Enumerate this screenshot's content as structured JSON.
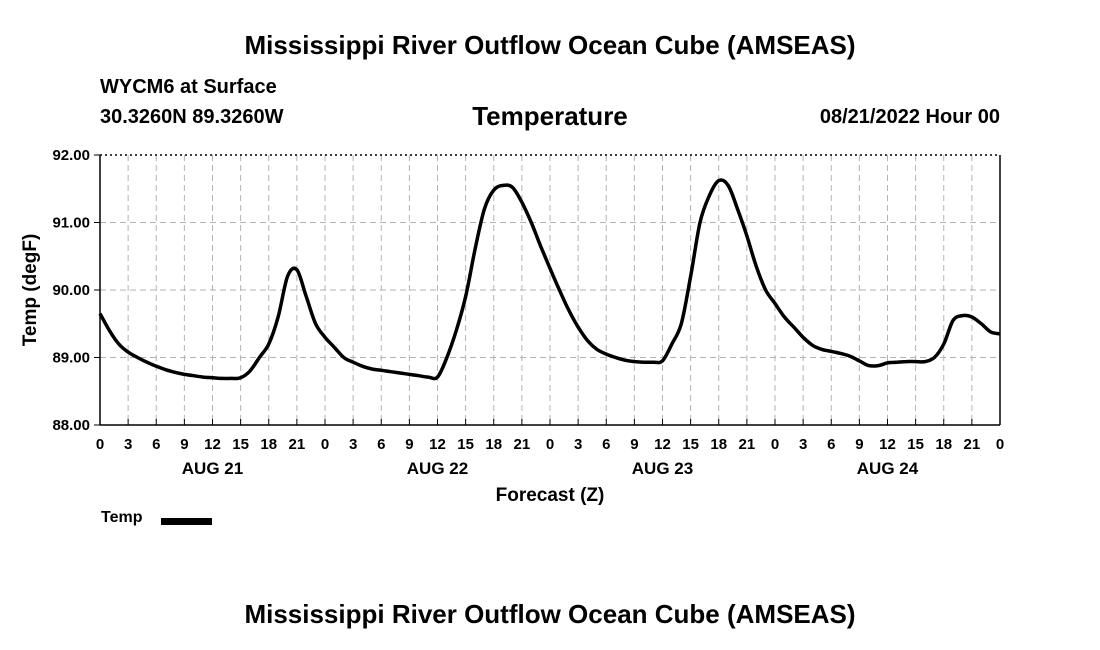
{
  "header": {
    "main_title": "Mississippi River Outflow Ocean Cube (AMSEAS)",
    "footer_title": "Mississippi River Outflow Ocean Cube (AMSEAS)",
    "station": "WYCM6 at Surface",
    "location": "30.3260N  89.3260W",
    "variable": "Temperature",
    "datetime": "08/21/2022 Hour 00"
  },
  "legend": {
    "label": "Temp"
  },
  "chart_data": {
    "type": "line",
    "title": "Temperature",
    "xlabel": "Forecast (Z)",
    "ylabel": "Temp (degF)",
    "ylim": [
      88.0,
      92.0
    ],
    "xlim": [
      0,
      96
    ],
    "y_ticks": [
      "88.00",
      "89.00",
      "90.00",
      "91.00",
      "92.00"
    ],
    "y_tick_values": [
      88.0,
      89.0,
      90.0,
      91.0,
      92.0
    ],
    "x_tick_labels": [
      "0",
      "3",
      "6",
      "9",
      "12",
      "15",
      "18",
      "21",
      "0",
      "3",
      "6",
      "9",
      "12",
      "15",
      "18",
      "21",
      "0",
      "3",
      "6",
      "9",
      "12",
      "15",
      "18",
      "21",
      "0",
      "3",
      "6",
      "9",
      "12",
      "15",
      "18",
      "21",
      "0"
    ],
    "day_labels": [
      {
        "label": "AUG 21",
        "hour": 12
      },
      {
        "label": "AUG 22",
        "hour": 36
      },
      {
        "label": "AUG 23",
        "hour": 60
      },
      {
        "label": "AUG 24",
        "hour": 84
      }
    ],
    "grid": true,
    "legend_position": "bottom-left",
    "series": [
      {
        "name": "Temp",
        "color": "#000000",
        "x": [
          0,
          1,
          2,
          3,
          4,
          5,
          6,
          7,
          8,
          9,
          10,
          11,
          12,
          13,
          14,
          15,
          16,
          17,
          18,
          19,
          20,
          21,
          22,
          23,
          24,
          25,
          26,
          27,
          28,
          29,
          30,
          31,
          32,
          33,
          34,
          35,
          36,
          37,
          38,
          39,
          40,
          41,
          42,
          43,
          44,
          45,
          46,
          47,
          48,
          49,
          50,
          51,
          52,
          53,
          54,
          55,
          56,
          57,
          58,
          59,
          60,
          61,
          62,
          63,
          64,
          65,
          66,
          67,
          68,
          69,
          70,
          71,
          72,
          73,
          74,
          75,
          76,
          77,
          78,
          79,
          80,
          81,
          82,
          83,
          84,
          85,
          86,
          87,
          88,
          89,
          90,
          91,
          92,
          93,
          94,
          95,
          96
        ],
        "values": [
          89.65,
          89.4,
          89.2,
          89.08,
          89.0,
          88.93,
          88.87,
          88.82,
          88.78,
          88.75,
          88.73,
          88.71,
          88.7,
          88.69,
          88.69,
          88.7,
          88.8,
          89.0,
          89.2,
          89.6,
          90.2,
          90.3,
          89.9,
          89.5,
          89.3,
          89.15,
          89.0,
          88.93,
          88.87,
          88.83,
          88.81,
          88.79,
          88.77,
          88.75,
          88.73,
          88.71,
          88.71,
          89.0,
          89.4,
          89.9,
          90.6,
          91.2,
          91.48,
          91.55,
          91.52,
          91.3,
          91.0,
          90.65,
          90.32,
          90.0,
          89.7,
          89.45,
          89.25,
          89.12,
          89.05,
          89.0,
          88.96,
          88.94,
          88.93,
          88.93,
          88.95,
          89.2,
          89.5,
          90.2,
          91.0,
          91.4,
          91.62,
          91.55,
          91.2,
          90.8,
          90.35,
          90.0,
          89.8,
          89.6,
          89.45,
          89.3,
          89.18,
          89.12,
          89.09,
          89.06,
          89.02,
          88.95,
          88.88,
          88.88,
          88.92,
          88.93,
          88.94,
          88.94,
          88.94,
          89.0,
          89.2,
          89.55,
          89.62,
          89.6,
          89.5,
          89.38,
          89.35
        ]
      }
    ]
  }
}
